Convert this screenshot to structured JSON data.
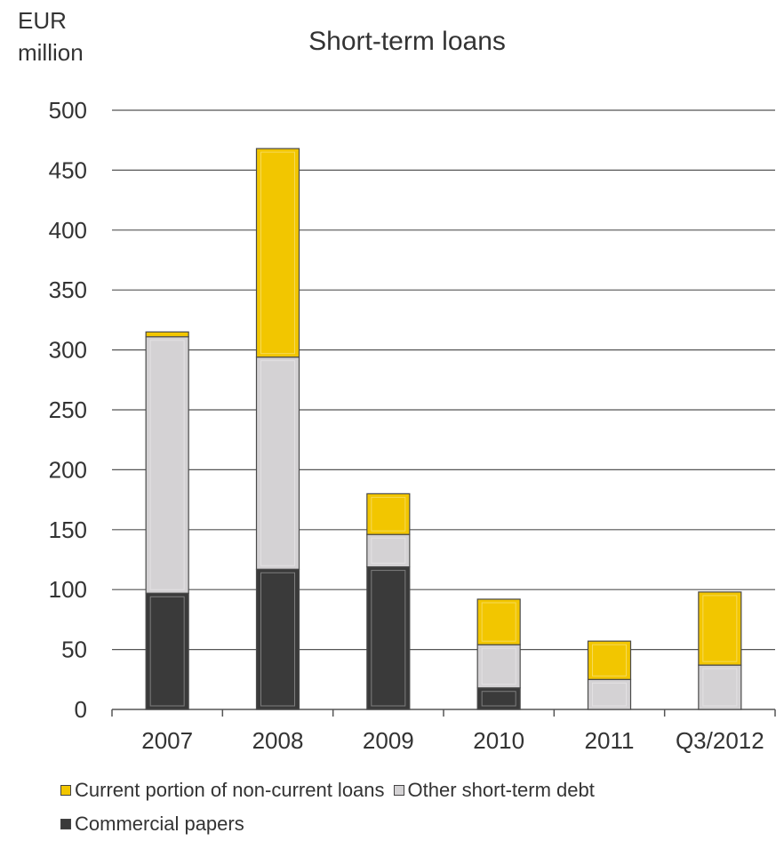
{
  "chart_data": {
    "type": "bar",
    "stacked": true,
    "title": "Short-term loans",
    "ylabel_line1": "EUR",
    "ylabel_line2": "million",
    "ylim": [
      0,
      500
    ],
    "yticks": [
      "0",
      "50",
      "100",
      "150",
      "200",
      "250",
      "300",
      "350",
      "400",
      "450",
      "500"
    ],
    "grid": true,
    "legend_position": "bottom",
    "categories": [
      "2007",
      "2008",
      "2009",
      "2010",
      "2011",
      "Q3/2012"
    ],
    "series": [
      {
        "name": "Commercial papers",
        "color": "#3a3a3a",
        "values": [
          97,
          117,
          119,
          18,
          0,
          0
        ]
      },
      {
        "name": "Other short-term debt",
        "color": "#d4d2d4",
        "values": [
          214,
          177,
          27,
          36,
          25,
          37
        ]
      },
      {
        "name": "Current portion of non-current loans",
        "color": "#f2c600",
        "values": [
          4,
          174,
          34,
          38,
          32,
          61
        ]
      }
    ],
    "legend_rows": [
      [
        "Current portion of non-current loans",
        "Other short-term debt"
      ],
      [
        "Commercial papers"
      ]
    ]
  }
}
